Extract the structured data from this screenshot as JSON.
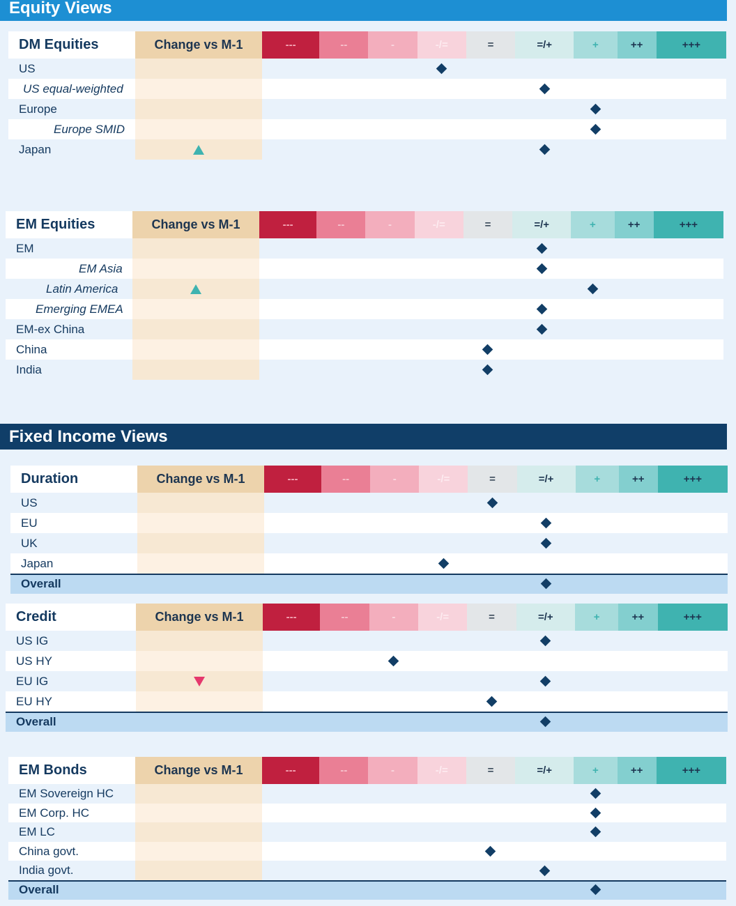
{
  "banners": {
    "equity": "Equity Views",
    "fixed_income": "Fixed Income Views"
  },
  "chart_data": {
    "type": "table",
    "change_header": "Change vs M-1",
    "scale": [
      {
        "label": "---",
        "bg": "#c0203f",
        "fg": "#f4a9b8"
      },
      {
        "label": "--",
        "bg": "#ea7f95",
        "fg": "#f7c3ce"
      },
      {
        "label": "-",
        "bg": "#f3aebd",
        "fg": "#fbd8e0"
      },
      {
        "label": "-/=",
        "bg": "#f8d3dc",
        "fg": "#fdebf0"
      },
      {
        "label": "=",
        "bg": "#e3e6e8",
        "fg": "#3a4a5a"
      },
      {
        "label": "=/+",
        "bg": "#d5ecec",
        "fg": "#1d3550"
      },
      {
        "label": "+",
        "bg": "#a7dcdc",
        "fg": "#3fb3b0"
      },
      {
        "label": "++",
        "bg": "#83cfcf",
        "fg": "#1d3550"
      },
      {
        "label": "+++",
        "bg": "#3fb3b0",
        "fg": "#1d3550"
      }
    ],
    "tables": [
      {
        "title": "DM Equities",
        "rows": [
          {
            "label": "US",
            "view": "-/=",
            "change": ""
          },
          {
            "label": "US equal-weighted",
            "view": "=/+",
            "change": "",
            "italic": true
          },
          {
            "label": "Europe",
            "view": "+",
            "change": ""
          },
          {
            "label": "Europe SMID",
            "view": "+",
            "change": "",
            "italic": true
          },
          {
            "label": "Japan",
            "view": "=/+",
            "change": "up"
          }
        ]
      },
      {
        "title": "EM Equities",
        "rows": [
          {
            "label": "EM",
            "view": "=/+",
            "change": ""
          },
          {
            "label": "EM Asia",
            "view": "=/+",
            "change": "",
            "italic": true
          },
          {
            "label": "Latin America",
            "view": "+",
            "change": "up",
            "italic": true
          },
          {
            "label": "Emerging EMEA",
            "view": "=/+",
            "change": "",
            "italic": true
          },
          {
            "label": "EM-ex China",
            "view": "=/+",
            "change": ""
          },
          {
            "label": "China",
            "view": "=",
            "change": ""
          },
          {
            "label": "India",
            "view": "=",
            "change": ""
          }
        ]
      },
      {
        "title": "Duration",
        "rows": [
          {
            "label": "US",
            "view": "=",
            "change": ""
          },
          {
            "label": "EU",
            "view": "=/+",
            "change": ""
          },
          {
            "label": "UK",
            "view": "=/+",
            "change": ""
          },
          {
            "label": "Japan",
            "view": "-/=",
            "change": ""
          },
          {
            "label": "Overall",
            "view": "=/+",
            "change": "",
            "overall": true
          }
        ]
      },
      {
        "title": "Credit",
        "rows": [
          {
            "label": "US IG",
            "view": "=/+",
            "change": ""
          },
          {
            "label": "US HY",
            "view": "-",
            "change": ""
          },
          {
            "label": "EU IG",
            "view": "=/+",
            "change": "down"
          },
          {
            "label": "EU HY",
            "view": "=",
            "change": ""
          },
          {
            "label": "Overall",
            "view": "=/+",
            "change": "",
            "overall": true
          }
        ]
      },
      {
        "title": "EM Bonds",
        "rows": [
          {
            "label": "EM Sovereign HC",
            "view": "+",
            "change": ""
          },
          {
            "label": "EM Corp. HC",
            "view": "+",
            "change": ""
          },
          {
            "label": "EM LC",
            "view": "+",
            "change": ""
          },
          {
            "label": "China govt.",
            "view": "=",
            "change": ""
          },
          {
            "label": "India govt.",
            "view": "=/+",
            "change": ""
          },
          {
            "label": "Overall",
            "view": "+",
            "change": "",
            "overall": true
          }
        ]
      }
    ]
  }
}
